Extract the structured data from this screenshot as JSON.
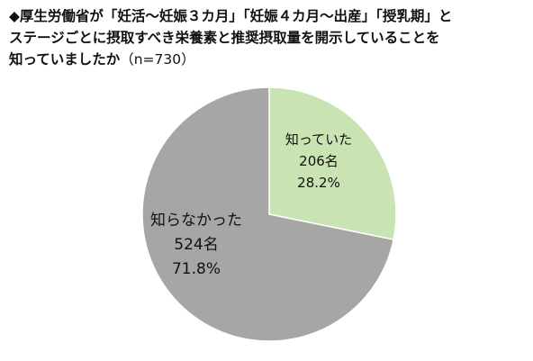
{
  "title": {
    "line1": "◆厚生労働省が「妊活～妊娠３カ月」「妊娠４カ月～出産」「授乳期」と",
    "line2": "ステージごとに摂取すべき栄養素と推奨摂取量を開示していることを",
    "line3": "知っていましたか",
    "n": "（n=730）"
  },
  "chart_data": {
    "type": "pie",
    "title": "厚生労働省が「妊活～妊娠３カ月」「妊娠４カ月～出産」「授乳期」とステージごとに摂取すべき栄養素と推奨摂取量を開示していることを知っていましたか（n=730）",
    "total_n": 730,
    "slices": [
      {
        "label": "知っていた",
        "count": 206,
        "count_label": "206名",
        "percent": 28.2,
        "percent_label": "28.2%",
        "color": "#c9e3b3"
      },
      {
        "label": "知らなかった",
        "count": 524,
        "count_label": "524名",
        "percent": 71.8,
        "percent_label": "71.8%",
        "color": "#a6a6a6"
      }
    ],
    "start": "12 o'clock",
    "direction": "clockwise",
    "border_color": "#ffffff"
  }
}
